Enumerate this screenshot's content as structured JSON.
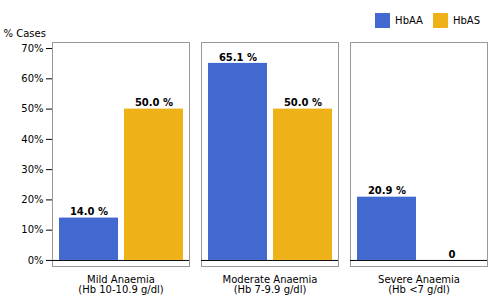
{
  "chart_data": {
    "type": "bar",
    "categories": [
      "Mild Anaemia\n(Hb 10-10.9 g/dl)",
      "Moderate Anaemia\n(Hb 7-9.9 g/dl)",
      "Severe Anaemia\n(Hb <7 g/dl)"
    ],
    "series": [
      {
        "name": "HbAA",
        "values": [
          14.0,
          65.1,
          20.9
        ],
        "value_labels": [
          "14.0 %",
          "65.1 %",
          "20.9 %"
        ]
      },
      {
        "name": "HbAS",
        "values": [
          50.0,
          50.0,
          0.0
        ],
        "value_labels": [
          "50.0 %",
          "50.0 %",
          "0"
        ]
      }
    ],
    "ylabel": "% Cases",
    "ylim": [
      -2,
      72
    ],
    "yticks": [
      {
        "value": 0,
        "label": "0%"
      },
      {
        "value": 10,
        "label": "10%"
      },
      {
        "value": 20,
        "label": "20%"
      },
      {
        "value": 30,
        "label": "30%"
      },
      {
        "value": 40,
        "label": "40%"
      },
      {
        "value": 50,
        "label": "50%"
      },
      {
        "value": 60,
        "label": "60%"
      },
      {
        "value": 70,
        "label": "70%"
      }
    ],
    "data_labels": true,
    "legend": "upper right"
  }
}
